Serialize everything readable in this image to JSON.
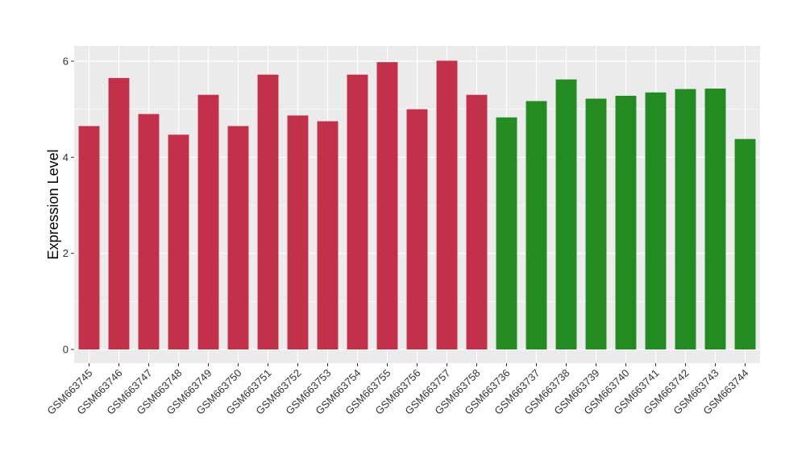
{
  "chart_data": {
    "type": "bar",
    "title": "",
    "xlabel": "",
    "ylabel": "Expression Level",
    "ylim": [
      0,
      6.3
    ],
    "yticks": [
      0,
      2,
      4,
      6
    ],
    "grid": true,
    "legend": "none",
    "colors": {
      "group1": "#c3304a",
      "group2": "#228b22",
      "panel": "#ebebeb",
      "grid": "#ffffff"
    },
    "categories": [
      "GSM663745",
      "GSM663746",
      "GSM663747",
      "GSM663748",
      "GSM663749",
      "GSM663750",
      "GSM663751",
      "GSM663752",
      "GSM663753",
      "GSM663754",
      "GSM663755",
      "GSM663756",
      "GSM663757",
      "GSM663758",
      "GSM663736",
      "GSM663737",
      "GSM663738",
      "GSM663739",
      "GSM663740",
      "GSM663741",
      "GSM663742",
      "GSM663743",
      "GSM663744"
    ],
    "values": [
      4.65,
      5.65,
      4.9,
      4.47,
      5.3,
      4.65,
      5.72,
      4.87,
      4.75,
      5.72,
      5.98,
      5.0,
      6.01,
      5.3,
      4.83,
      5.17,
      5.62,
      5.22,
      5.28,
      5.35,
      5.42,
      5.43,
      4.38
    ],
    "groups": [
      "group1",
      "group1",
      "group1",
      "group1",
      "group1",
      "group1",
      "group1",
      "group1",
      "group1",
      "group1",
      "group1",
      "group1",
      "group1",
      "group1",
      "group2",
      "group2",
      "group2",
      "group2",
      "group2",
      "group2",
      "group2",
      "group2",
      "group2"
    ]
  }
}
